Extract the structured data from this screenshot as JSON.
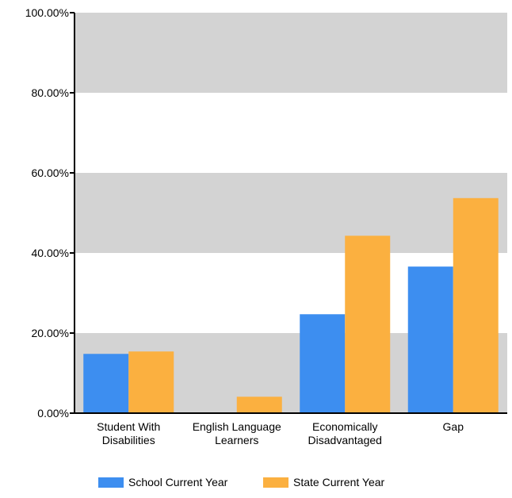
{
  "chart_data": {
    "type": "bar",
    "categories": [
      [
        "Student With",
        "Disabilities"
      ],
      [
        "English Language",
        "Learners"
      ],
      [
        "Economically",
        "Disadvantaged"
      ],
      [
        "Gap"
      ]
    ],
    "series": [
      {
        "name": "School Current Year",
        "color": "#3d8ef0",
        "values": [
          14.8,
          0,
          24.7,
          36.6
        ]
      },
      {
        "name": "State Current Year",
        "color": "#fbb040",
        "values": [
          15.4,
          4.1,
          44.3,
          53.7
        ]
      }
    ],
    "ylim": [
      0,
      100
    ],
    "yticks": [
      0,
      20,
      40,
      60,
      80,
      100
    ],
    "ytick_labels": [
      "0.00%",
      "20.00%",
      "40.00%",
      "60.00%",
      "80.00%",
      "100.00%"
    ],
    "band_color": "#d3d3d3",
    "grid": "alternating-bands",
    "legend": "bottom-center",
    "title": "",
    "xlabel": "",
    "ylabel": ""
  }
}
